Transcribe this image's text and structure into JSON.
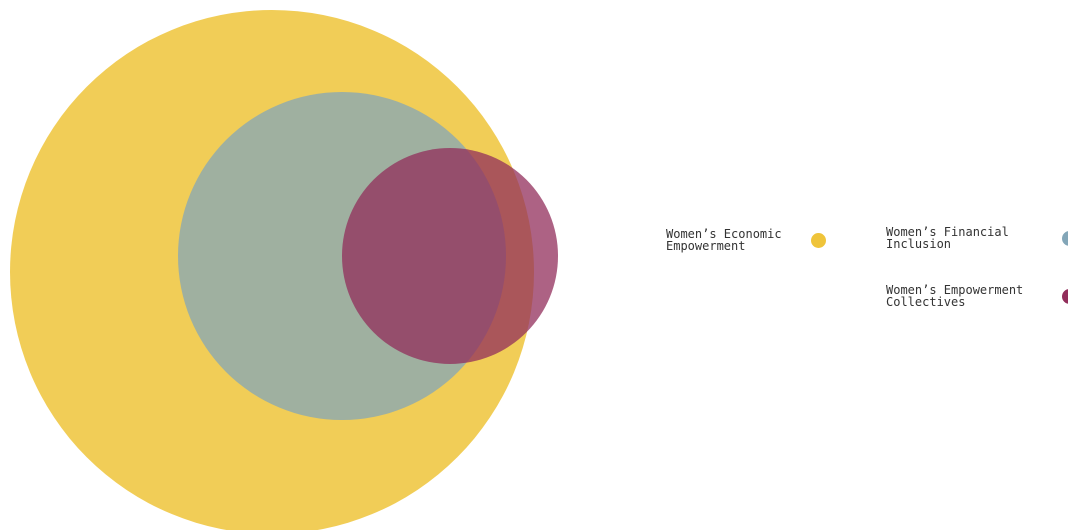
{
  "diagram": {
    "type": "nested-venn",
    "sets": [
      {
        "id": "economic",
        "label": "Women’s Economic\nEmpowerment",
        "color": "#efc43a"
      },
      {
        "id": "financial",
        "label": "Women’s Financial\nInclusion",
        "color": "#83a6b8"
      },
      {
        "id": "collectives",
        "label": "Women’s Empowerment\nCollectives",
        "color": "#922e5b"
      }
    ],
    "relationships": {
      "financial": "subset of economic",
      "collectives": "overlaps financial and economic"
    }
  }
}
